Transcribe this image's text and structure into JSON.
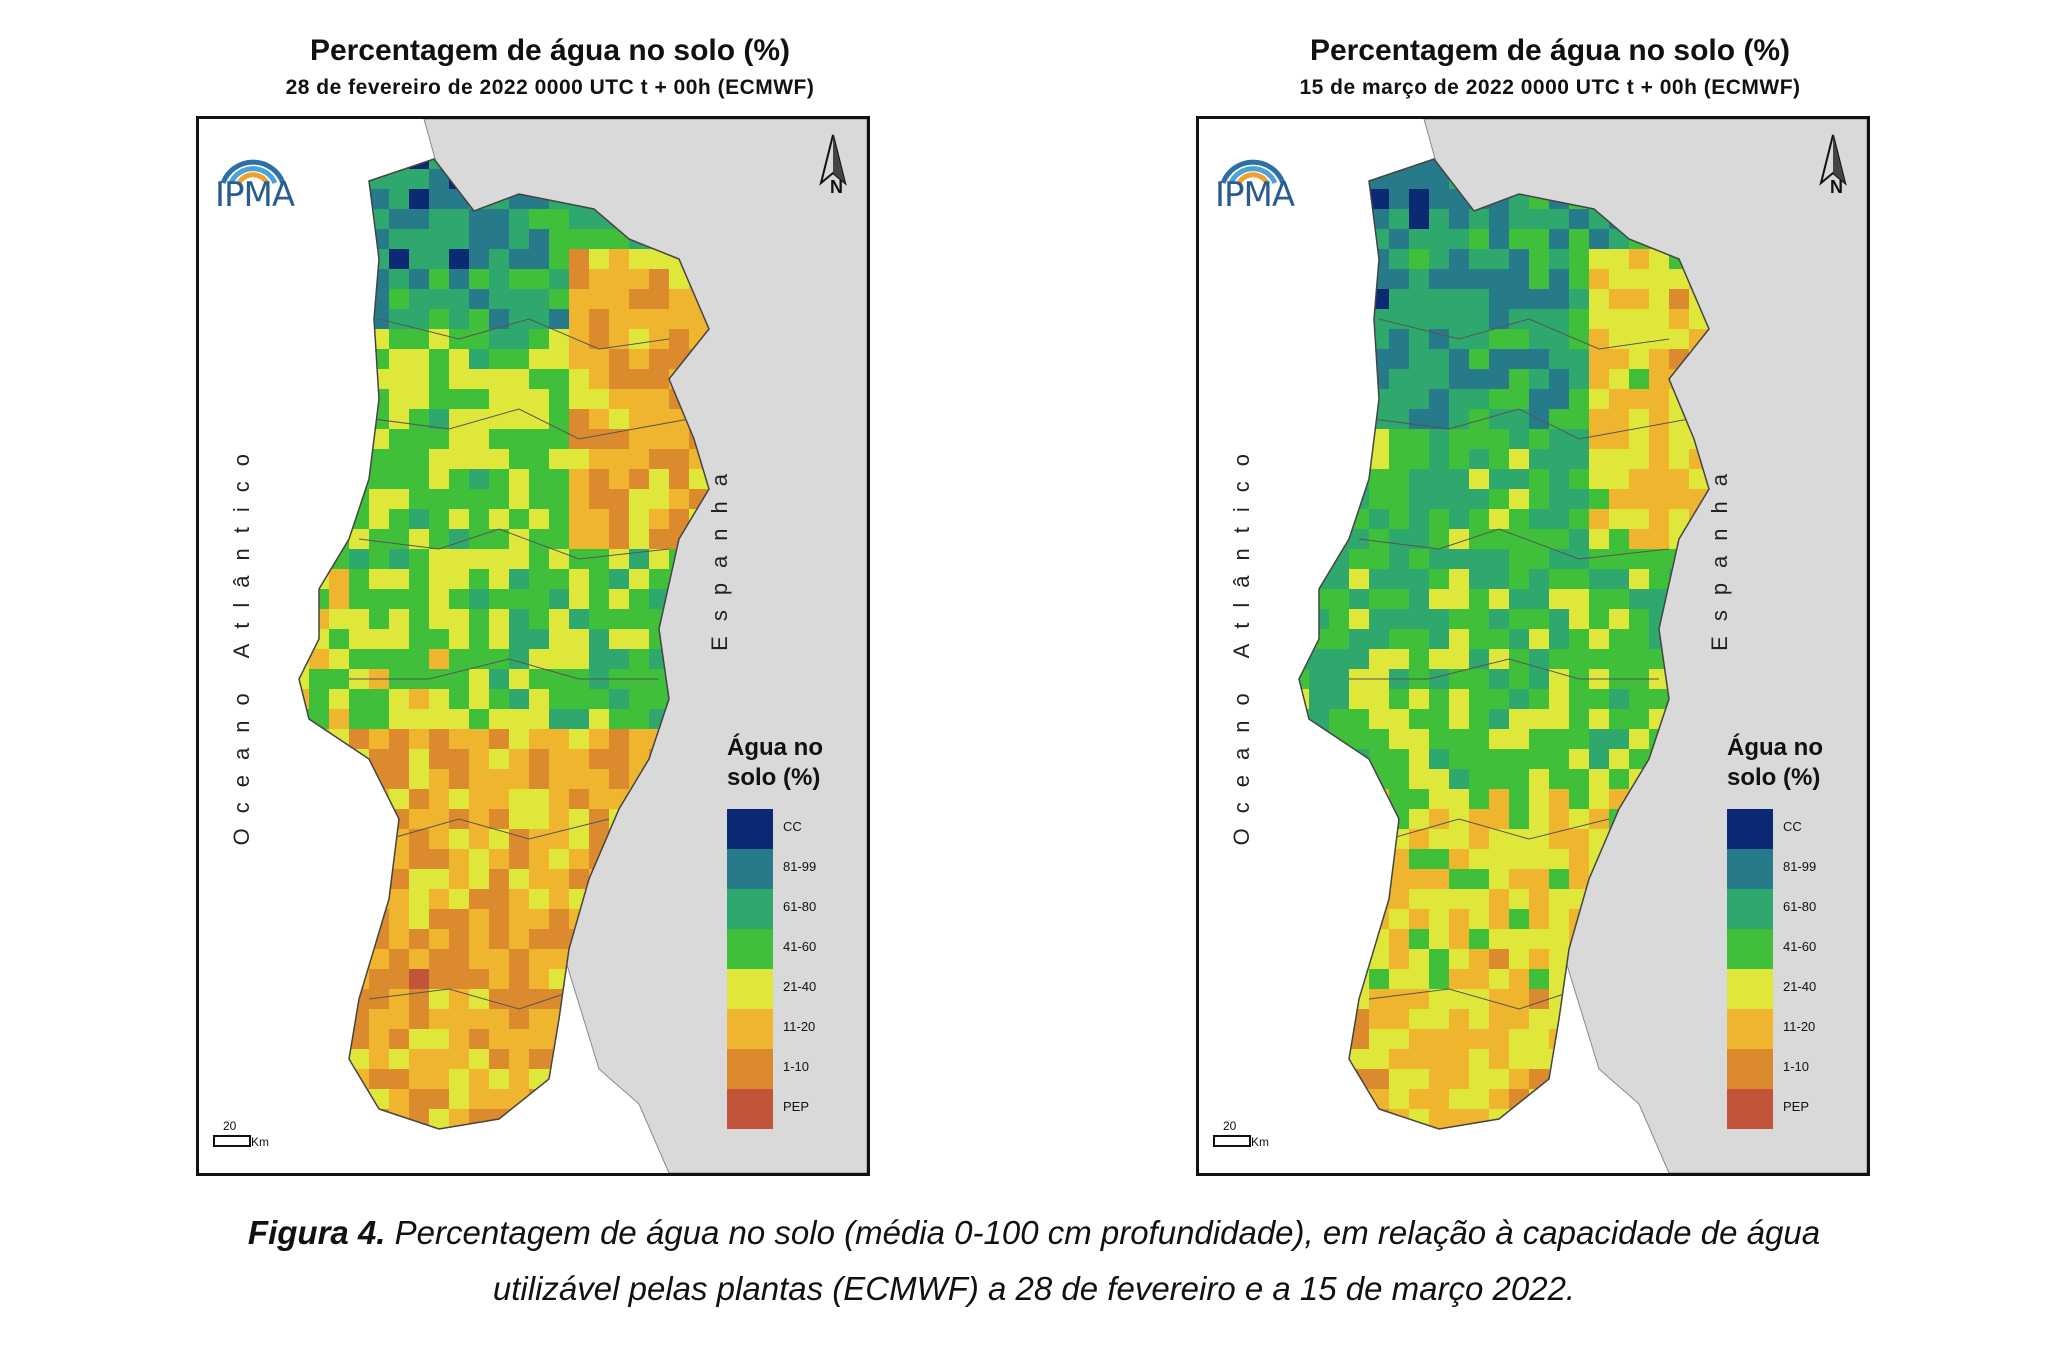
{
  "colors": {
    "CC": "#0c2a74",
    "81-99": "#267a8a",
    "61-80": "#2fa86e",
    "41-60": "#40bf3a",
    "21-40": "#dfe83a",
    "11-20": "#f0b52e",
    "1-10": "#dc8a2e",
    "PEP": "#c2543a",
    "land_other": "#d9d9d9",
    "sea": "#ffffff"
  },
  "maps": [
    {
      "title": "Percentagem de água no solo (%)",
      "subtitle": "28 de fevereiro de 2022 0000 UTC t + 00h (ECMWF)",
      "logo_text": "IPMA",
      "north_label": "N",
      "ocean_label": "Oceano Atlântico",
      "spain_label": "Espanha",
      "legend_title": "Água no solo (%)",
      "legend": [
        "CC",
        "81-99",
        "61-80",
        "41-60",
        "21-40",
        "11-20",
        "1-10",
        "PEP"
      ],
      "scale_value": "20",
      "scale_unit": "Km",
      "icons": [
        "ipma-logo-icon",
        "north-arrow-icon"
      ]
    },
    {
      "title": "Percentagem de água no solo (%)",
      "subtitle": "15 de março de 2022 0000 UTC t + 00h (ECMWF)",
      "logo_text": "IPMA",
      "north_label": "N",
      "ocean_label": "Oceano Atlântico",
      "spain_label": "Espanha",
      "legend_title": "Água no solo (%)",
      "legend": [
        "CC",
        "81-99",
        "61-80",
        "41-60",
        "21-40",
        "11-20",
        "1-10",
        "PEP"
      ],
      "scale_value": "20",
      "scale_unit": "Km",
      "icons": [
        "ipma-logo-icon",
        "north-arrow-icon"
      ]
    }
  ],
  "caption": {
    "label": "Figura 4.",
    "text_line1": " Percentagem de água no solo (média 0-100 cm profundidade), em relação à capacidade de água",
    "text_line2": "utilizável pelas plantas (ECMWF) a 28 de fevereiro e a 15 de março 2022."
  }
}
